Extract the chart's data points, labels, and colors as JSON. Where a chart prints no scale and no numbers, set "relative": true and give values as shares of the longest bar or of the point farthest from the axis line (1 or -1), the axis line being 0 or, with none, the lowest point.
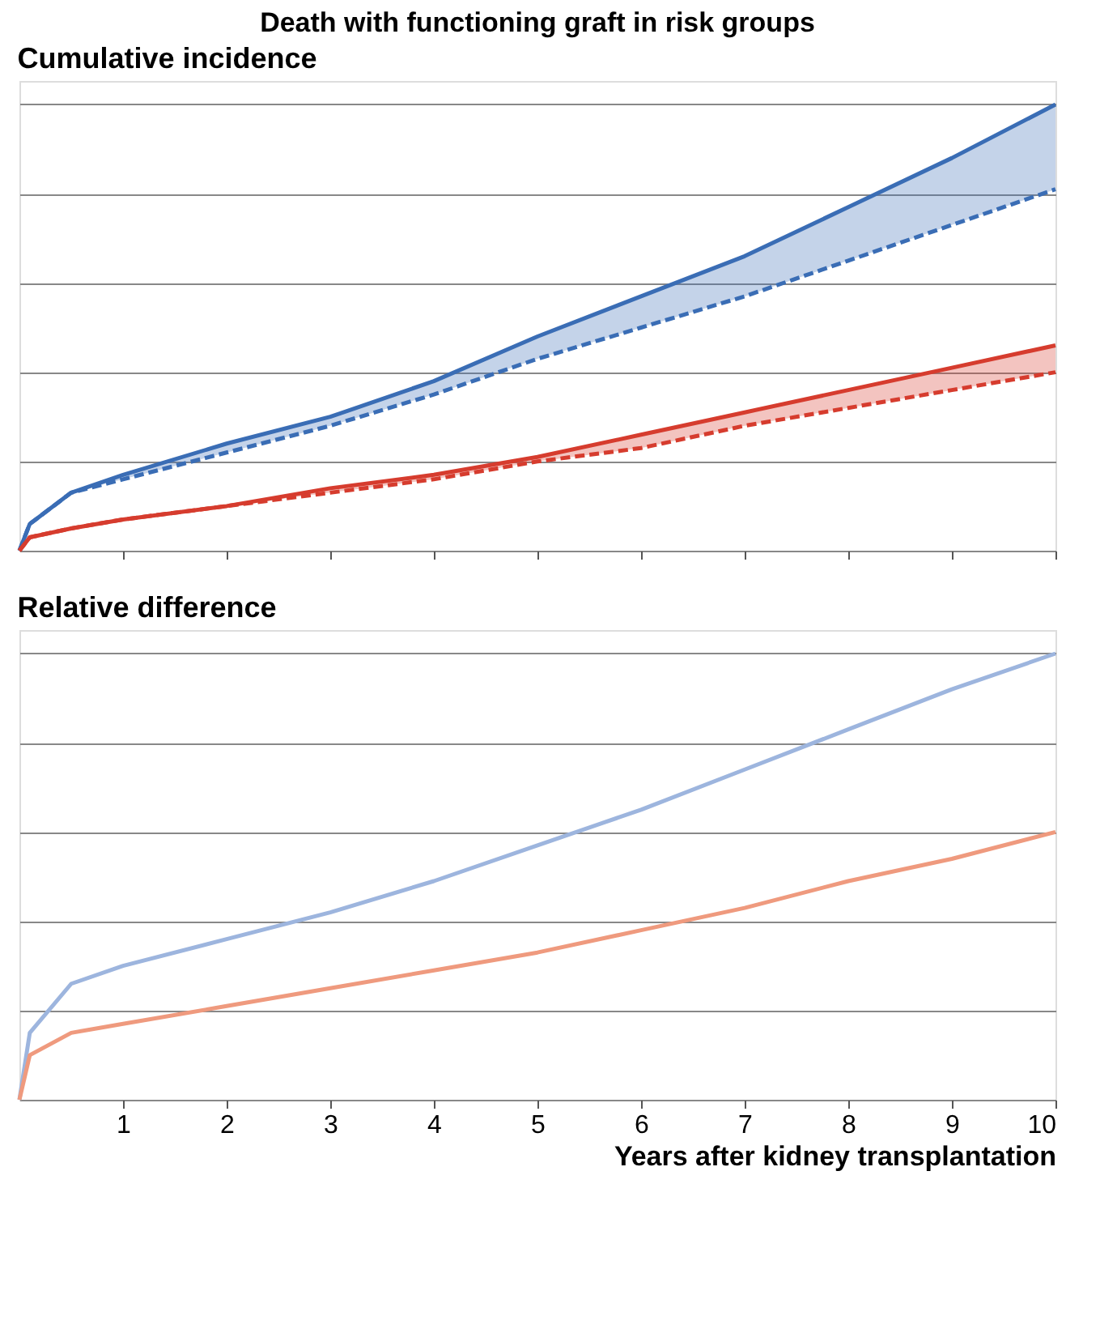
{
  "chart_data": [
    {
      "type": "line",
      "title": "Death with functioning graft in risk groups",
      "subtitle": "Cumulative incidence",
      "relative": true,
      "x": [
        0,
        0.1,
        0.5,
        1,
        2,
        3,
        4,
        5,
        6,
        7,
        8,
        9,
        10
      ],
      "xlim": [
        0,
        10
      ],
      "xticks": [
        1,
        2,
        3,
        4,
        5,
        6,
        7,
        8,
        9,
        10
      ],
      "tick_labels": false,
      "grid": "y",
      "series": [
        {
          "color": "#3a6db5",
          "line_style": "solid",
          "values": [
            0,
            0.06,
            0.13,
            0.17,
            0.24,
            0.3,
            0.38,
            0.48,
            0.57,
            0.66,
            0.77,
            0.88,
            1
          ],
          "lower": [
            0,
            0.06,
            0.13,
            0.16,
            0.22,
            0.28,
            0.35,
            0.43,
            0.5,
            0.57,
            0.65,
            0.73,
            0.81
          ],
          "upper": [
            0,
            0.06,
            0.13,
            0.17,
            0.24,
            0.3,
            0.38,
            0.48,
            0.57,
            0.66,
            0.77,
            0.88,
            1
          ]
        },
        {
          "color": "#3a6db5",
          "line_style": "dashed",
          "values": [
            0,
            0.06,
            0.13,
            0.16,
            0.22,
            0.28,
            0.35,
            0.43,
            0.5,
            0.57,
            0.65,
            0.73,
            0.81
          ]
        },
        {
          "color": "#d63c2e",
          "line_style": "solid",
          "values": [
            0,
            0.03,
            0.05,
            0.07,
            0.1,
            0.14,
            0.17,
            0.21,
            0.26,
            0.31,
            0.36,
            0.41,
            0.46
          ],
          "lower": [
            0,
            0.03,
            0.05,
            0.07,
            0.1,
            0.13,
            0.16,
            0.2,
            0.23,
            0.28,
            0.32,
            0.36,
            0.4
          ],
          "upper": [
            0,
            0.03,
            0.05,
            0.07,
            0.1,
            0.14,
            0.17,
            0.21,
            0.26,
            0.31,
            0.36,
            0.41,
            0.46
          ]
        },
        {
          "color": "#d63c2e",
          "line_style": "dashed",
          "values": [
            0,
            0.03,
            0.05,
            0.07,
            0.1,
            0.13,
            0.16,
            0.2,
            0.23,
            0.28,
            0.32,
            0.36,
            0.4
          ]
        }
      ]
    },
    {
      "type": "line",
      "subtitle": "Relative difference",
      "xlabel": "Years after kidney transplantation",
      "relative": true,
      "x": [
        0,
        0.1,
        0.5,
        1,
        2,
        3,
        4,
        5,
        6,
        7,
        8,
        9,
        10
      ],
      "xlim": [
        0,
        10
      ],
      "xticks": [
        1,
        2,
        3,
        4,
        5,
        6,
        7,
        8,
        9,
        10
      ],
      "tick_labels": "x",
      "grid": "y",
      "series": [
        {
          "color": "#9db5de",
          "line_style": "solid",
          "values": [
            0,
            0.15,
            0.26,
            0.3,
            0.36,
            0.42,
            0.49,
            0.57,
            0.65,
            0.74,
            0.83,
            0.92,
            1
          ]
        },
        {
          "color": "#ef9a7e",
          "line_style": "solid",
          "values": [
            0,
            0.1,
            0.15,
            0.17,
            0.21,
            0.25,
            0.29,
            0.33,
            0.38,
            0.43,
            0.49,
            0.54,
            0.6
          ]
        }
      ]
    }
  ]
}
